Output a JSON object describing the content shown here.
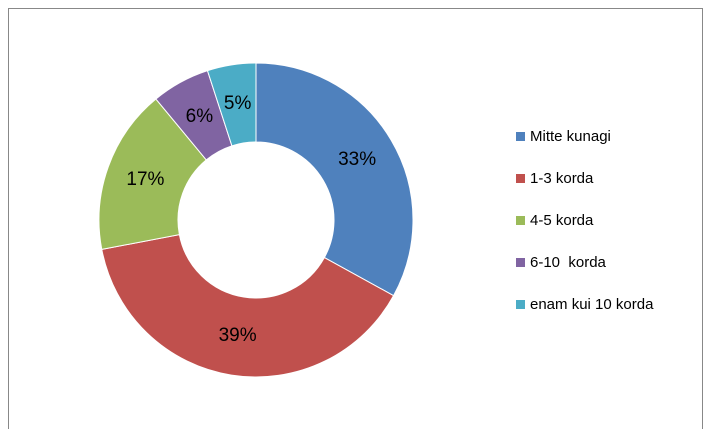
{
  "chart_data": {
    "type": "donut",
    "categories": [
      "Mitte kunagi",
      "1-3 korda",
      "4-5 korda",
      "6-10  korda",
      "enam kui 10 korda"
    ],
    "values": [
      33,
      39,
      17,
      6,
      5
    ],
    "value_labels": [
      "33%",
      "39%",
      "17%",
      "6%",
      "5%"
    ],
    "colors": [
      "#4f81bd",
      "#c0504d",
      "#9bbb59",
      "#8064a2",
      "#4bacc6"
    ],
    "legend": "right"
  }
}
